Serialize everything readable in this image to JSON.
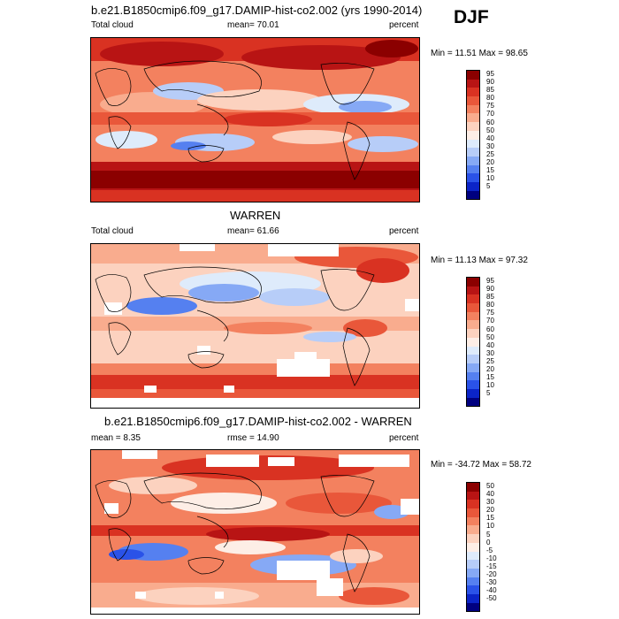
{
  "season": "DJF",
  "colors": {
    "abs_scale": [
      "#000080",
      "#0b24c8",
      "#2a52e8",
      "#5580f0",
      "#86a9f5",
      "#b7cdf8",
      "#deebfb",
      "#fdeee6",
      "#fcd2bf",
      "#f9ac8e",
      "#f3815f",
      "#e9573a",
      "#d93222",
      "#b81414",
      "#8b0000"
    ],
    "diff_scale": [
      "#000080",
      "#0b24c8",
      "#2a52e8",
      "#5580f0",
      "#86a9f5",
      "#b7cdf8",
      "#deebfb",
      "#fdeee6",
      "#fcd2bf",
      "#f9ac8e",
      "#f3815f",
      "#e9573a",
      "#d93222",
      "#b81414",
      "#8b0000"
    ]
  },
  "panels": [
    {
      "title": "b.e21.B1850cmip6.f09_g17.DAMIP-hist-co2.002 (yrs 1990-2014)",
      "left_label": "Total cloud",
      "mean_label": "mean=  70.01",
      "right_label": "percent",
      "minmax": "Min =  11.51 Max =  98.65",
      "levels": [
        "95",
        "90",
        "85",
        "80",
        "75",
        "70",
        "60",
        "50",
        "40",
        "30",
        "25",
        "20",
        "15",
        "10",
        "5"
      ]
    },
    {
      "title": "WARREN",
      "left_label": "Total cloud",
      "mean_label": "mean=  61.66",
      "right_label": "percent",
      "minmax": "Min =  11.13 Max =  97.32",
      "levels": [
        "95",
        "90",
        "85",
        "80",
        "75",
        "70",
        "60",
        "50",
        "40",
        "30",
        "25",
        "20",
        "15",
        "10",
        "5"
      ]
    },
    {
      "title": "b.e21.B1850cmip6.f09_g17.DAMIP-hist-co2.002 - WARREN",
      "left_label": "mean =   8.35",
      "mean_label": "rmse =  14.90",
      "right_label": "percent",
      "minmax": "Min = -34.72 Max =  58.72",
      "levels": [
        "50",
        "40",
        "30",
        "20",
        "15",
        "10",
        "5",
        "0",
        "-5",
        "-10",
        "-15",
        "-20",
        "-30",
        "-40",
        "-50"
      ]
    }
  ]
}
